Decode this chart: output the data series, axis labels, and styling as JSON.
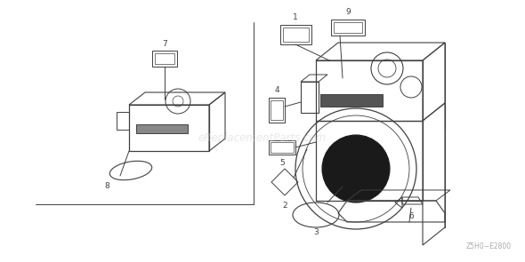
{
  "bg_color": "#ffffff",
  "diagram_code": "Z5H0−E2800",
  "watermark": "eReplacementParts.com",
  "line_color": "#404040",
  "text_color": "#404040",
  "watermark_color": "#cccccc",
  "watermark_alpha": 0.45,
  "fig_w": 5.9,
  "fig_h": 2.95,
  "dpi": 100
}
